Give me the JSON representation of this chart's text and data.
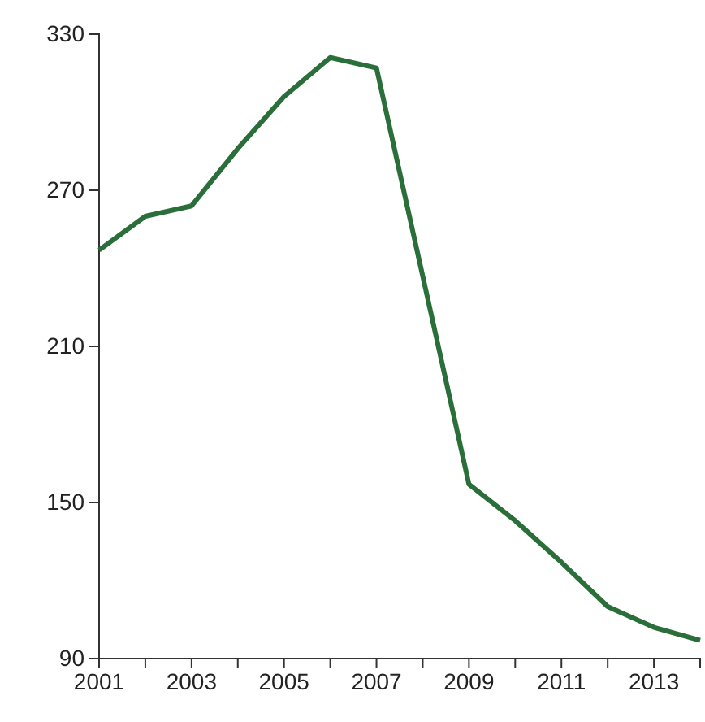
{
  "chart_data": {
    "type": "line",
    "x": [
      2001,
      2002,
      2003,
      2004,
      2005,
      2006,
      2007,
      2008,
      2009,
      2010,
      2011,
      2012,
      2013,
      2014
    ],
    "series": [
      {
        "color": "#2a6e3a",
        "values": [
          247,
          260,
          264,
          286,
          306,
          321,
          317,
          237,
          157,
          143,
          127,
          110,
          102,
          97
        ]
      }
    ],
    "xlim": [
      2001,
      2014
    ],
    "ylim": [
      90,
      330
    ],
    "xticks": [
      2001,
      {
        "value": 2002,
        "label": null
      },
      2003,
      {
        "value": 2004,
        "label": null
      },
      2005,
      {
        "value": 2006,
        "label": null
      },
      2007,
      {
        "value": 2008,
        "label": null
      },
      2009,
      {
        "value": 2010,
        "label": null
      },
      2011,
      {
        "value": 2012,
        "label": null
      },
      2013,
      {
        "value": 2014,
        "label": null
      }
    ],
    "yticks": [
      90,
      150,
      210,
      270,
      330
    ],
    "grid": false,
    "marker": "none",
    "line_style": "solid"
  }
}
